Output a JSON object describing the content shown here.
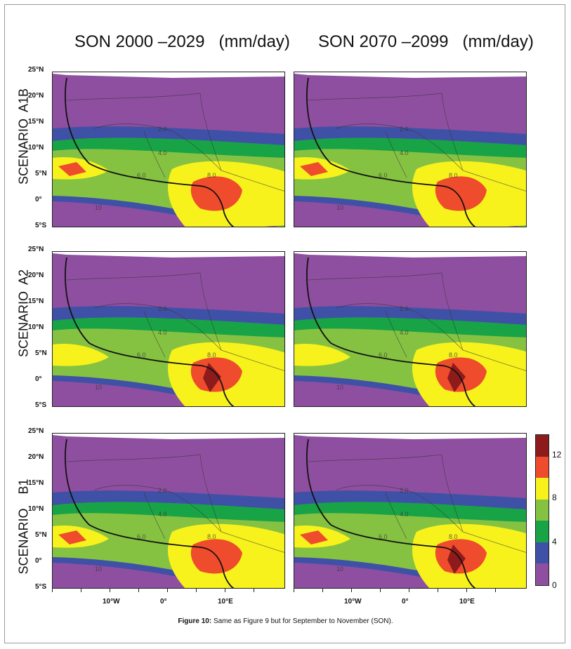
{
  "column_titles": [
    "SON 2000 –2029   (mm/day)",
    "SON 2070 –2099   (mm/day)"
  ],
  "rows": [
    {
      "label": "SCENARIO  A1B",
      "id": "a1b"
    },
    {
      "label": "SCENARIO  A2",
      "id": "a2"
    },
    {
      "label": "SCENARIO    B1",
      "id": "b1"
    }
  ],
  "lat_labels": [
    "25°N",
    "20°N",
    "15°N",
    "10°N",
    "5°N",
    "0°",
    "5°S"
  ],
  "lon_labels": [
    "10°W",
    "0°",
    "10°E"
  ],
  "colorbar": {
    "ticks": [
      "12",
      "8",
      "4",
      "0"
    ],
    "colors": [
      "#8e1b1b",
      "#ee4c2c",
      "#f7f21c",
      "#86c242",
      "#19a347",
      "#3f51a6",
      "#8f4fa0"
    ]
  },
  "contour_labels": [
    "2.0",
    "4.0",
    "6.0",
    "8.0",
    "10"
  ],
  "caption": {
    "label": "Figure 10:",
    "text": " Same as Figure 9 but for September to November (SON)."
  },
  "colors": {
    "purple": "#8f4fa0",
    "blue": "#3f51a6",
    "dark_green": "#19a347",
    "light_green": "#86c242",
    "yellow": "#f7f21c",
    "orange": "#ee4c2c",
    "dark_red": "#8e1b1b"
  }
}
